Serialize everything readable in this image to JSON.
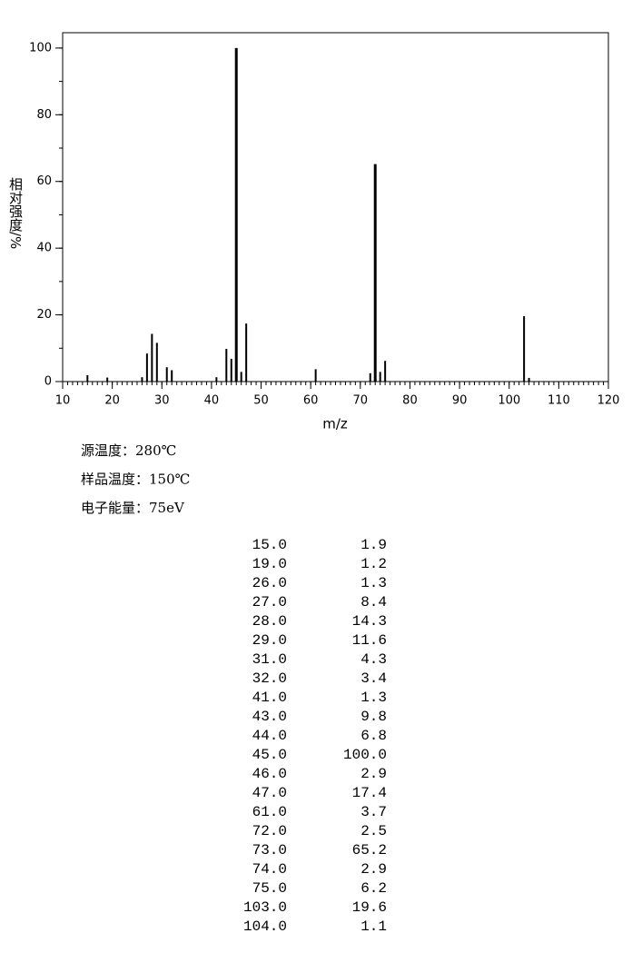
{
  "chart_data": {
    "type": "stem",
    "x_label": "m/z",
    "y_label": "相对强度/%",
    "x": [
      15,
      19,
      26,
      27,
      28,
      29,
      31,
      32,
      41,
      43,
      44,
      45,
      46,
      47,
      61,
      72,
      73,
      74,
      75,
      103,
      104
    ],
    "x_labels": [
      "15.0",
      "19.0",
      "26.0",
      "27.0",
      "28.0",
      "29.0",
      "31.0",
      "32.0",
      "41.0",
      "43.0",
      "44.0",
      "45.0",
      "46.0",
      "47.0",
      "61.0",
      "72.0",
      "73.0",
      "74.0",
      "75.0",
      "103.0",
      "104.0"
    ],
    "values": [
      1.9,
      1.2,
      1.3,
      8.4,
      14.3,
      11.6,
      4.3,
      3.4,
      1.3,
      9.8,
      6.8,
      100.0,
      2.9,
      17.4,
      3.7,
      2.5,
      65.2,
      2.9,
      6.2,
      19.6,
      1.1
    ],
    "value_labels": [
      "1.9",
      "1.2",
      "1.3",
      "8.4",
      "14.3",
      "11.6",
      "4.3",
      "3.4",
      "1.3",
      "9.8",
      "6.8",
      "100.0",
      "2.9",
      "17.4",
      "3.7",
      "2.5",
      "65.2",
      "2.9",
      "6.2",
      "19.6",
      "1.1"
    ],
    "color": "#000000",
    "xlim": [
      10,
      120
    ],
    "xticks": [
      10,
      20,
      30,
      40,
      50,
      60,
      70,
      80,
      90,
      100,
      110,
      120
    ],
    "ylim": [
      0,
      104.6
    ],
    "yticks": [
      0,
      20,
      40,
      60,
      80,
      100
    ]
  },
  "conditions": [
    "源温度：280℃",
    "样品温度：150℃",
    "电子能量：75eV"
  ]
}
